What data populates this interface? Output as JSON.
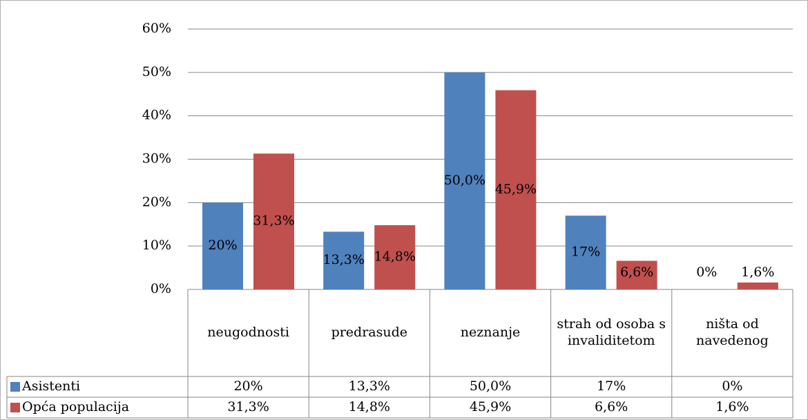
{
  "chart_data": {
    "type": "bar",
    "categories": [
      "neugodnosti",
      "predrasude",
      "neznanje",
      "strah od osoba s invaliditetom",
      "ništa od navedenog"
    ],
    "series": [
      {
        "name": "Asistenti",
        "color": "#4f81bd",
        "values": [
          20,
          13.3,
          50,
          17,
          0
        ],
        "value_labels": [
          "20%",
          "13,3%",
          "50,0%",
          "17%",
          "0%"
        ]
      },
      {
        "name": "Opća populacija",
        "color": "#c0504d",
        "values": [
          31.3,
          14.8,
          45.9,
          6.6,
          1.6
        ],
        "value_labels": [
          "31,3%",
          "14,8%",
          "45,9%",
          "6,6%",
          "1,6%"
        ]
      }
    ],
    "ylim": [
      0,
      60
    ],
    "yticks": [
      {
        "value": 0,
        "label": "0%"
      },
      {
        "value": 10,
        "label": "10%"
      },
      {
        "value": 20,
        "label": "20%"
      },
      {
        "value": 30,
        "label": "30%"
      },
      {
        "value": 40,
        "label": "40%"
      },
      {
        "value": 50,
        "label": "50%"
      },
      {
        "value": 60,
        "label": "60%"
      }
    ],
    "grid": true
  }
}
